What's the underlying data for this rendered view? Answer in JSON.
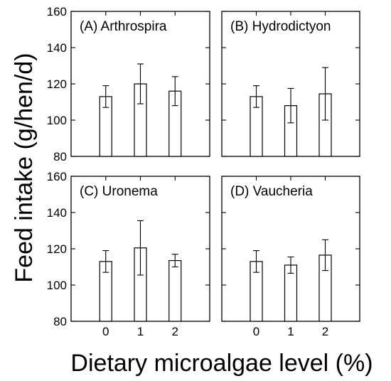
{
  "chart_data": {
    "type": "bar",
    "ylabel": "Feed intake (g/hen/d)",
    "xlabel": "Dietary microalgae level (%)",
    "categories": [
      "0",
      "1",
      "2"
    ],
    "ylim": [
      80,
      160
    ],
    "yticks": [
      "80",
      "100",
      "120",
      "140",
      "160"
    ],
    "grid": false,
    "panels": [
      {
        "title": "(A) Arthrospira",
        "values": [
          113,
          120,
          116
        ],
        "errors": [
          6,
          11,
          8
        ]
      },
      {
        "title": "(B) Hydrodictyon",
        "values": [
          113,
          108,
          114.5
        ],
        "errors": [
          6,
          9.5,
          14.5
        ]
      },
      {
        "title": "(C) Uronema",
        "values": [
          113,
          120.5,
          113.5
        ],
        "errors": [
          6,
          15,
          3.5
        ]
      },
      {
        "title": "(D) Vaucheria",
        "values": [
          113,
          111,
          116.5
        ],
        "errors": [
          6,
          4.5,
          8.5
        ]
      }
    ]
  }
}
